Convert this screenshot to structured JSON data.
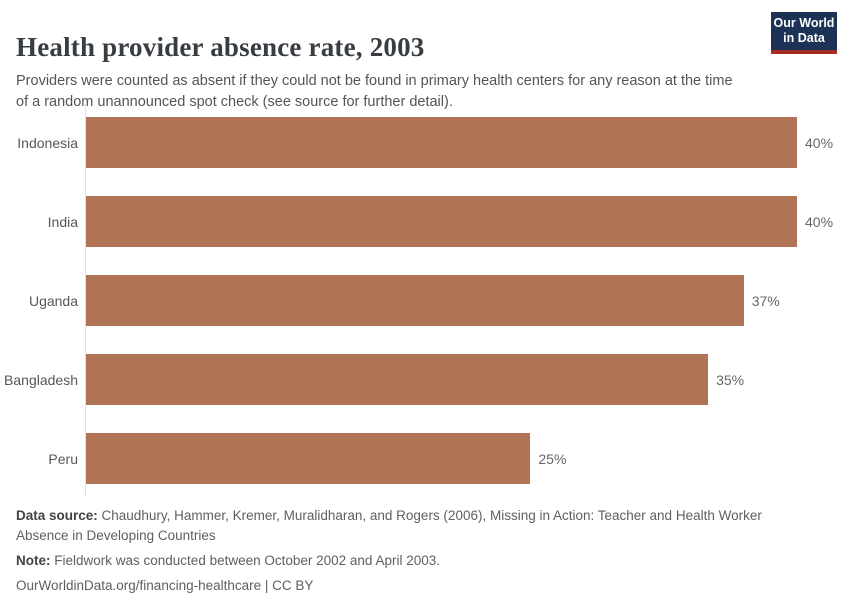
{
  "header": {
    "title": "Health provider absence rate, 2003",
    "subtitle": "Providers were counted as absent if they could not be found in primary health centers for any reason at the time of a random unannounced spot check (see source for further detail)."
  },
  "logo": {
    "line1": "Our World",
    "line2": "in Data",
    "background_color": "#1d3356",
    "accent_color": "#a52c23"
  },
  "chart_data": {
    "type": "bar",
    "orientation": "horizontal",
    "title": "Health provider absence rate, 2003",
    "categories": [
      "Indonesia",
      "India",
      "Uganda",
      "Bangladesh",
      "Peru"
    ],
    "values": [
      40,
      40,
      37,
      35,
      25
    ],
    "value_labels": [
      "40%",
      "40%",
      "37%",
      "35%",
      "25%"
    ],
    "unit": "%",
    "xlim": [
      0,
      40
    ],
    "bar_color": "#b07356",
    "axis_color": "#e0e0e0",
    "grid": false,
    "legend": "none"
  },
  "footer": {
    "data_source_label": "Data source:",
    "data_source_text": " Chaudhury, Hammer, Kremer, Muralidharan, and Rogers (2006), Missing in Action: Teacher and Health Worker Absence in Developing Countries",
    "note_label": "Note:",
    "note_text": " Fieldwork was conducted between October 2002 and April 2003.",
    "citation": "OurWorldinData.org/financing-healthcare | CC BY"
  }
}
